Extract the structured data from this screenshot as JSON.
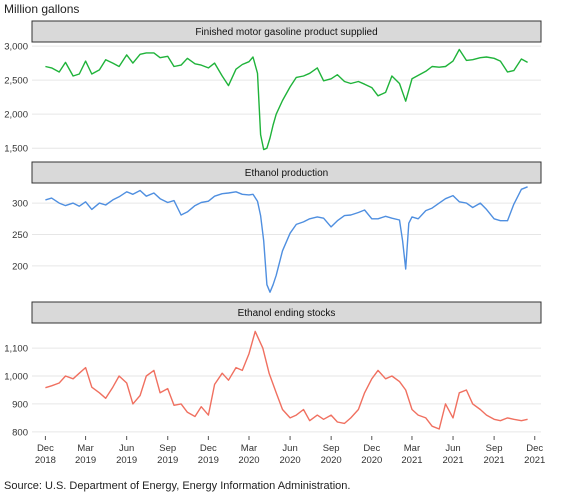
{
  "unit_label": "Million gallons",
  "source": "Source: U.S. Department of Energy, Energy Information Administration.",
  "x_axis": {
    "ticks": [
      {
        "date": "2018-12-01",
        "month": "Dec",
        "year": "2018"
      },
      {
        "date": "2019-03-01",
        "month": "Mar",
        "year": "2019"
      },
      {
        "date": "2019-06-01",
        "month": "Jun",
        "year": "2019"
      },
      {
        "date": "2019-09-01",
        "month": "Sep",
        "year": "2019"
      },
      {
        "date": "2019-12-01",
        "month": "Dec",
        "year": "2019"
      },
      {
        "date": "2020-03-01",
        "month": "Mar",
        "year": "2020"
      },
      {
        "date": "2020-06-01",
        "month": "Jun",
        "year": "2020"
      },
      {
        "date": "2020-09-01",
        "month": "Sep",
        "year": "2020"
      },
      {
        "date": "2020-12-01",
        "month": "Dec",
        "year": "2020"
      },
      {
        "date": "2021-03-01",
        "month": "Mar",
        "year": "2021"
      },
      {
        "date": "2021-06-01",
        "month": "Jun",
        "year": "2021"
      },
      {
        "date": "2021-09-01",
        "month": "Sep",
        "year": "2021"
      },
      {
        "date": "2021-12-01",
        "month": "Dec",
        "year": "2021"
      }
    ],
    "range": [
      "2018-11-01",
      "2021-12-15"
    ]
  },
  "chart_data": [
    {
      "type": "line",
      "title": "Finished motor gasoline product supplied",
      "color": "#1fb33a",
      "ylim": [
        1400,
        3060
      ],
      "yticks": [
        1500,
        2000,
        2500,
        3000
      ],
      "ytick_labels": [
        "1,500",
        "2,000",
        "2,500",
        "3,000"
      ],
      "grid": true,
      "x": [
        "2018-12-01",
        "2018-12-15",
        "2019-01-01",
        "2019-01-15",
        "2019-02-01",
        "2019-02-15",
        "2019-03-01",
        "2019-03-15",
        "2019-04-01",
        "2019-04-15",
        "2019-05-01",
        "2019-05-15",
        "2019-06-01",
        "2019-06-15",
        "2019-07-01",
        "2019-07-15",
        "2019-08-01",
        "2019-08-15",
        "2019-09-01",
        "2019-09-15",
        "2019-10-01",
        "2019-10-15",
        "2019-11-01",
        "2019-11-15",
        "2019-12-01",
        "2019-12-15",
        "2020-01-01",
        "2020-01-15",
        "2020-02-01",
        "2020-02-15",
        "2020-03-01",
        "2020-03-10",
        "2020-03-20",
        "2020-03-27",
        "2020-04-03",
        "2020-04-10",
        "2020-04-17",
        "2020-04-24",
        "2020-05-01",
        "2020-05-15",
        "2020-06-01",
        "2020-06-15",
        "2020-07-01",
        "2020-07-15",
        "2020-08-01",
        "2020-08-15",
        "2020-09-01",
        "2020-09-15",
        "2020-10-01",
        "2020-10-15",
        "2020-11-01",
        "2020-11-15",
        "2020-12-01",
        "2020-12-15",
        "2021-01-01",
        "2021-01-15",
        "2021-02-01",
        "2021-02-15",
        "2021-03-01",
        "2021-03-15",
        "2021-04-01",
        "2021-04-15",
        "2021-05-01",
        "2021-05-15",
        "2021-06-01",
        "2021-06-15",
        "2021-07-01",
        "2021-07-15",
        "2021-08-01",
        "2021-08-15",
        "2021-09-01",
        "2021-09-15",
        "2021-10-01",
        "2021-10-15",
        "2021-11-01",
        "2021-11-15"
      ],
      "y": [
        2700,
        2680,
        2620,
        2760,
        2560,
        2590,
        2780,
        2590,
        2650,
        2800,
        2750,
        2700,
        2870,
        2750,
        2880,
        2900,
        2900,
        2830,
        2850,
        2700,
        2720,
        2820,
        2740,
        2720,
        2680,
        2750,
        2560,
        2420,
        2660,
        2730,
        2770,
        2840,
        2600,
        1700,
        1480,
        1500,
        1650,
        1840,
        2000,
        2200,
        2400,
        2540,
        2560,
        2600,
        2680,
        2490,
        2520,
        2580,
        2480,
        2450,
        2480,
        2440,
        2390,
        2270,
        2320,
        2560,
        2450,
        2190,
        2520,
        2570,
        2630,
        2700,
        2690,
        2700,
        2780,
        2950,
        2790,
        2800,
        2830,
        2840,
        2820,
        2780,
        2620,
        2640,
        2810,
        2760
      ]
    },
    {
      "type": "line",
      "title": "Ethanol production",
      "color": "#4f8fe0",
      "ylim": [
        152,
        332
      ],
      "yticks": [
        200,
        250,
        300
      ],
      "ytick_labels": [
        "200",
        "250",
        "300"
      ],
      "grid": true,
      "x": [
        "2018-12-01",
        "2018-12-15",
        "2019-01-01",
        "2019-01-15",
        "2019-02-01",
        "2019-02-15",
        "2019-03-01",
        "2019-03-15",
        "2019-04-01",
        "2019-04-15",
        "2019-05-01",
        "2019-05-15",
        "2019-06-01",
        "2019-06-15",
        "2019-07-01",
        "2019-07-15",
        "2019-08-01",
        "2019-08-15",
        "2019-09-01",
        "2019-09-15",
        "2019-10-01",
        "2019-10-15",
        "2019-11-01",
        "2019-11-15",
        "2019-12-01",
        "2019-12-15",
        "2020-01-01",
        "2020-01-15",
        "2020-02-01",
        "2020-02-15",
        "2020-03-01",
        "2020-03-10",
        "2020-03-20",
        "2020-03-27",
        "2020-04-03",
        "2020-04-10",
        "2020-04-17",
        "2020-04-24",
        "2020-05-01",
        "2020-05-15",
        "2020-06-01",
        "2020-06-15",
        "2020-07-01",
        "2020-07-15",
        "2020-08-01",
        "2020-08-15",
        "2020-09-01",
        "2020-09-15",
        "2020-10-01",
        "2020-10-15",
        "2020-11-01",
        "2020-11-15",
        "2020-12-01",
        "2020-12-15",
        "2021-01-01",
        "2021-01-15",
        "2021-02-01",
        "2021-02-08",
        "2021-02-15",
        "2021-02-22",
        "2021-03-01",
        "2021-03-15",
        "2021-04-01",
        "2021-04-15",
        "2021-05-01",
        "2021-05-15",
        "2021-06-01",
        "2021-06-15",
        "2021-07-01",
        "2021-07-15",
        "2021-08-01",
        "2021-08-15",
        "2021-09-01",
        "2021-09-15",
        "2021-10-01",
        "2021-10-15",
        "2021-11-01",
        "2021-11-15"
      ],
      "y": [
        305,
        308,
        300,
        296,
        300,
        295,
        302,
        290,
        300,
        297,
        305,
        310,
        318,
        314,
        320,
        311,
        316,
        307,
        301,
        304,
        281,
        286,
        296,
        301,
        303,
        311,
        315,
        316,
        318,
        314,
        313,
        314,
        303,
        280,
        240,
        170,
        158,
        170,
        185,
        224,
        252,
        266,
        270,
        275,
        278,
        276,
        262,
        272,
        280,
        281,
        285,
        289,
        275,
        275,
        279,
        276,
        273,
        240,
        195,
        268,
        278,
        275,
        288,
        292,
        300,
        307,
        312,
        302,
        300,
        293,
        300,
        290,
        275,
        272,
        272,
        298,
        322,
        326
      ]
    },
    {
      "type": "line",
      "title": "Ethanol ending stocks",
      "color": "#f07060",
      "ylim": [
        785,
        1190
      ],
      "yticks": [
        800,
        900,
        1000,
        1100
      ],
      "ytick_labels": [
        "800",
        "900",
        "1,000",
        "1,100"
      ],
      "grid": true,
      "x": [
        "2018-12-01",
        "2018-12-15",
        "2019-01-01",
        "2019-01-15",
        "2019-02-01",
        "2019-02-15",
        "2019-03-01",
        "2019-03-15",
        "2019-04-01",
        "2019-04-15",
        "2019-05-01",
        "2019-05-15",
        "2019-06-01",
        "2019-06-15",
        "2019-07-01",
        "2019-07-15",
        "2019-08-01",
        "2019-08-15",
        "2019-09-01",
        "2019-09-15",
        "2019-10-01",
        "2019-10-15",
        "2019-11-01",
        "2019-11-15",
        "2019-12-01",
        "2019-12-15",
        "2020-01-01",
        "2020-01-15",
        "2020-02-01",
        "2020-02-15",
        "2020-03-01",
        "2020-03-15",
        "2020-04-01",
        "2020-04-15",
        "2020-05-01",
        "2020-05-15",
        "2020-06-01",
        "2020-06-15",
        "2020-07-01",
        "2020-07-15",
        "2020-08-01",
        "2020-08-15",
        "2020-09-01",
        "2020-09-15",
        "2020-10-01",
        "2020-10-15",
        "2020-11-01",
        "2020-11-15",
        "2020-12-01",
        "2020-12-15",
        "2021-01-01",
        "2021-01-15",
        "2021-02-01",
        "2021-02-15",
        "2021-03-01",
        "2021-03-15",
        "2021-04-01",
        "2021-04-15",
        "2021-05-01",
        "2021-05-15",
        "2021-06-01",
        "2021-06-15",
        "2021-07-01",
        "2021-07-15",
        "2021-08-01",
        "2021-08-15",
        "2021-09-01",
        "2021-09-15",
        "2021-10-01",
        "2021-10-15",
        "2021-11-01",
        "2021-11-15"
      ],
      "y": [
        958,
        965,
        975,
        1000,
        990,
        1010,
        1030,
        960,
        940,
        920,
        960,
        1000,
        975,
        900,
        930,
        1000,
        1020,
        940,
        955,
        895,
        900,
        870,
        855,
        890,
        860,
        970,
        1010,
        985,
        1030,
        1020,
        1080,
        1160,
        1100,
        1010,
        940,
        880,
        850,
        860,
        880,
        840,
        860,
        845,
        860,
        835,
        830,
        850,
        880,
        940,
        990,
        1020,
        990,
        1000,
        980,
        950,
        880,
        860,
        850,
        820,
        810,
        900,
        850,
        940,
        950,
        900,
        880,
        860,
        845,
        840,
        850,
        845,
        840,
        845
      ]
    }
  ]
}
